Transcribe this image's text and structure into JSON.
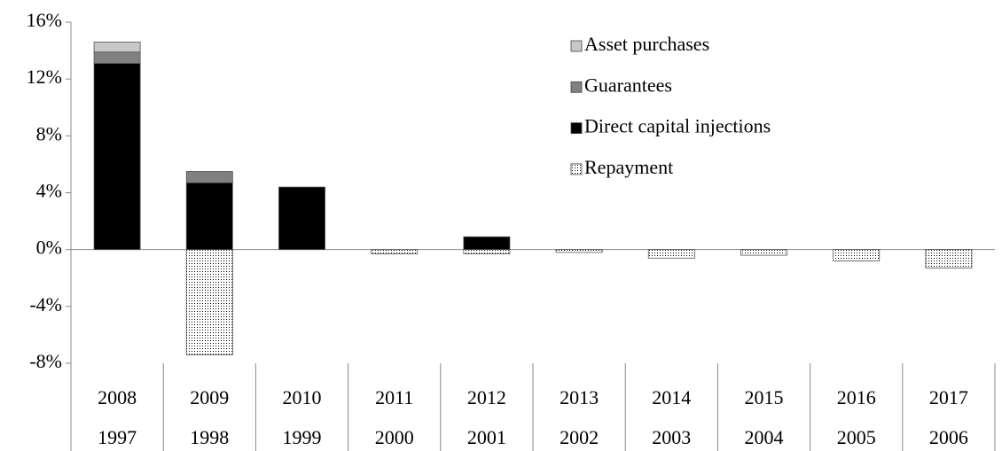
{
  "chart_data": {
    "type": "stacked_bar",
    "categories": [
      [
        "2008",
        "1997"
      ],
      [
        "2009",
        "1998"
      ],
      [
        "2010",
        "1999"
      ],
      [
        "2011",
        "2000"
      ],
      [
        "2012",
        "2001"
      ],
      [
        "2013",
        "2002"
      ],
      [
        "2014",
        "2003"
      ],
      [
        "2015",
        "2004"
      ],
      [
        "2016",
        "2005"
      ],
      [
        "2017",
        "2006"
      ]
    ],
    "series": [
      {
        "name": "Asset purchases",
        "color": "#c8c8c8",
        "values": [
          0.7,
          0,
          0,
          0,
          0,
          0,
          0,
          0,
          0,
          0
        ]
      },
      {
        "name": "Guarantees",
        "color": "#808080",
        "values": [
          0.8,
          0.8,
          0,
          0,
          0,
          0,
          0,
          0,
          0,
          0
        ]
      },
      {
        "name": "Direct capital injections",
        "color": "#000000",
        "values": [
          13.1,
          4.7,
          4.4,
          0,
          0.9,
          0,
          0,
          0,
          0,
          0
        ]
      },
      {
        "name": "Repayment",
        "color": "#000000",
        "pattern": "dots",
        "values": [
          0,
          -7.4,
          0,
          -0.3,
          -0.3,
          -0.2,
          -0.6,
          -0.4,
          -0.8,
          -1.3
        ]
      }
    ],
    "ylim": [
      -8,
      16
    ],
    "yticks": [
      {
        "value": -8,
        "label": "-8%"
      },
      {
        "value": -4,
        "label": "-4%"
      },
      {
        "value": 0,
        "label": "0%"
      },
      {
        "value": 4,
        "label": "4%"
      },
      {
        "value": 8,
        "label": "8%"
      },
      {
        "value": 12,
        "label": "12%"
      },
      {
        "value": 16,
        "label": "16%"
      }
    ],
    "grid": false,
    "legend": "upper-right"
  }
}
